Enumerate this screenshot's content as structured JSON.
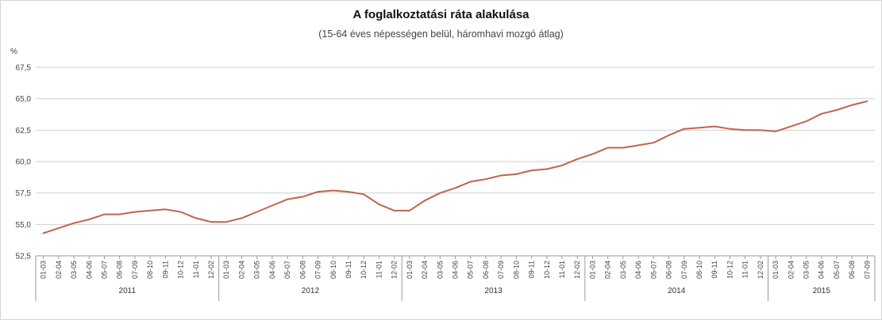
{
  "chart_data": {
    "type": "line",
    "title": "A foglalkoztatási ráta alakulása",
    "subtitle": "(15-64 éves népességen belül, háromhavi mozgó átlag)",
    "ylabel": "%",
    "ylim": [
      52.5,
      67.5
    ],
    "yticks": [
      "52,5",
      "55,0",
      "57,5",
      "60,0",
      "62,5",
      "65,0",
      "67,5"
    ],
    "grid": true,
    "line_color": "#c0644a",
    "years": [
      {
        "label": "2011",
        "periods": [
          "01-03",
          "02-04",
          "03-05",
          "04-06",
          "05-07",
          "06-08",
          "07-09",
          "08-10",
          "09-11",
          "10-12",
          "11-01",
          "12-02"
        ]
      },
      {
        "label": "2012",
        "periods": [
          "01-03",
          "02-04",
          "03-05",
          "04-06",
          "05-07",
          "06-08",
          "07-09",
          "08-10",
          "09-11",
          "10-12",
          "11-01",
          "12-02"
        ]
      },
      {
        "label": "2013",
        "periods": [
          "01-03",
          "02-04",
          "03-05",
          "04-06",
          "05-07",
          "06-08",
          "07-09",
          "08-10",
          "09-11",
          "10-12",
          "11-01",
          "12-02"
        ]
      },
      {
        "label": "2014",
        "periods": [
          "01-03",
          "02-04",
          "03-05",
          "04-06",
          "05-07",
          "06-08",
          "07-09",
          "08-10",
          "09-11",
          "10-12",
          "11-01",
          "12-02"
        ]
      },
      {
        "label": "2015",
        "periods": [
          "01-03",
          "02-04",
          "03-05",
          "04-06",
          "05-07",
          "06-08",
          "07-09"
        ]
      }
    ],
    "series": [
      {
        "values": [
          54.3,
          54.7,
          55.1,
          55.4,
          55.8,
          55.8,
          56.0,
          56.1,
          56.2,
          56.0,
          55.5,
          55.2,
          55.2,
          55.5,
          56.0,
          56.5,
          57.0,
          57.2,
          57.6,
          57.7,
          57.6,
          57.4,
          56.6,
          56.1,
          56.1,
          56.9,
          57.5,
          57.9,
          58.4,
          58.6,
          58.9,
          59.0,
          59.3,
          59.4,
          59.7,
          60.2,
          60.6,
          61.1,
          61.1,
          61.3,
          61.5,
          62.1,
          62.6,
          62.7,
          62.8,
          62.6,
          62.5,
          62.5,
          62.4,
          62.8,
          63.2,
          63.8,
          64.1,
          64.5,
          64.8
        ]
      }
    ]
  }
}
